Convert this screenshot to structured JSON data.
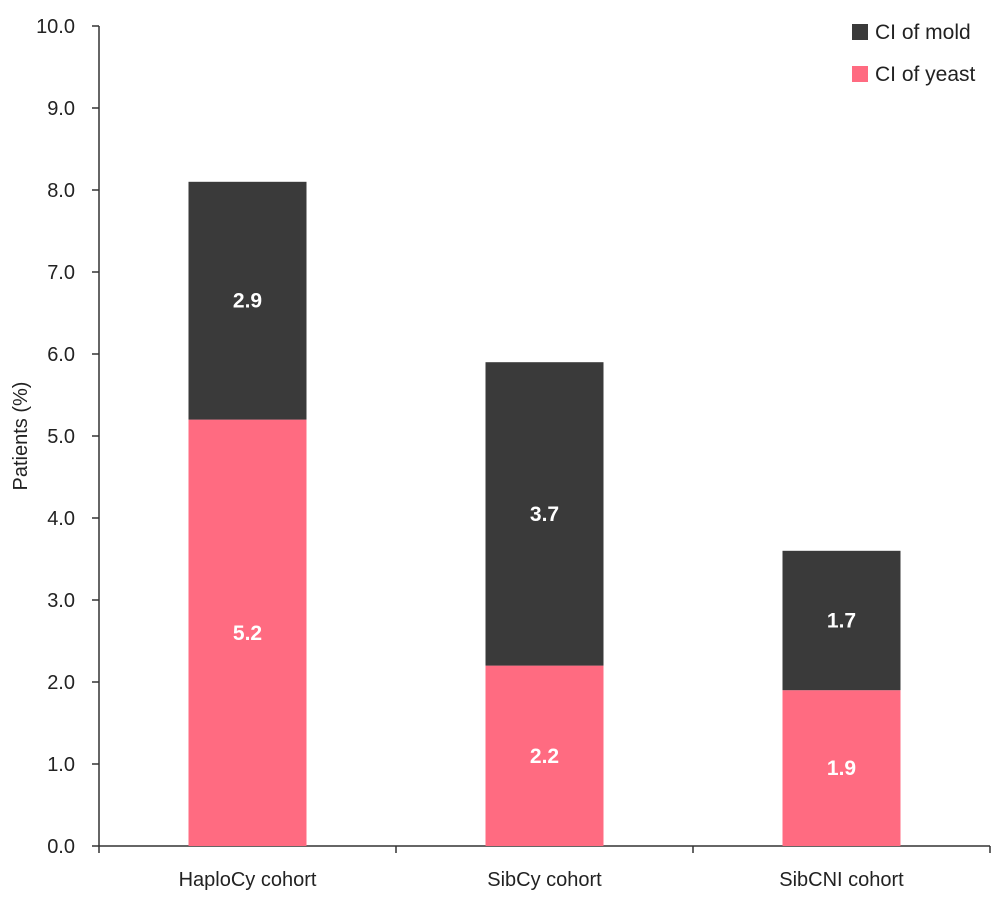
{
  "chart_data": {
    "type": "bar",
    "stacked": true,
    "title": "",
    "xlabel": "",
    "ylabel": "Patients (%)",
    "ylim": [
      0,
      10
    ],
    "yticks": [
      "0.0",
      "1.0",
      "2.0",
      "3.0",
      "4.0",
      "5.0",
      "6.0",
      "7.0",
      "8.0",
      "9.0",
      "10.0"
    ],
    "categories": [
      "HaploCy cohort",
      "SibCy cohort",
      "SibCNI cohort"
    ],
    "series": [
      {
        "name": "CI of yeast",
        "color": "#ff6b81",
        "values": [
          5.2,
          2.2,
          1.9
        ],
        "labels": [
          "5.2",
          "2.2",
          "1.9"
        ]
      },
      {
        "name": "CI of mold",
        "color": "#3a3a3a",
        "values": [
          2.9,
          3.7,
          1.7
        ],
        "labels": [
          "2.9",
          "3.7",
          "1.7"
        ]
      }
    ],
    "legend": {
      "position": "top-right",
      "entries": [
        {
          "name": "CI of mold",
          "color": "#3a3a3a"
        },
        {
          "name": "CI of yeast",
          "color": "#ff6b81"
        }
      ]
    },
    "grid": false
  }
}
